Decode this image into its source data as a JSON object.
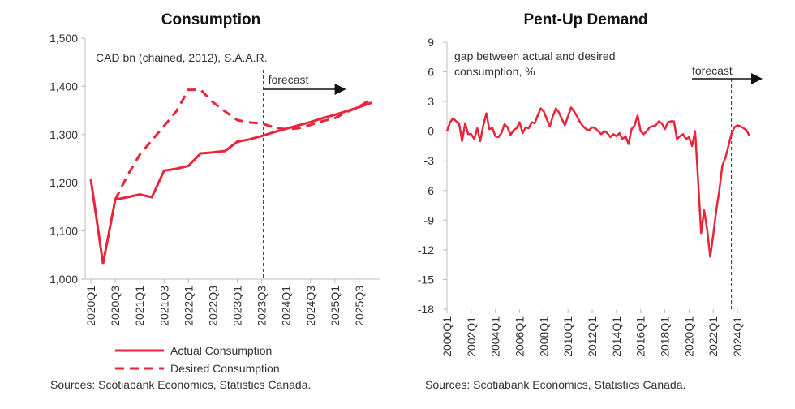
{
  "chart_data": [
    {
      "type": "line",
      "title": "Consumption",
      "unit_note": "CAD bn (chained, 2012), S.A.A.R.",
      "y_ticks": [
        "1,500",
        "1,400",
        "1,300",
        "1,200",
        "1,100",
        "1,000"
      ],
      "ylim": [
        1000,
        1500
      ],
      "x_ticks": [
        "2020Q1",
        "2020Q3",
        "2021Q1",
        "2021Q3",
        "2022Q1",
        "2022Q3",
        "2023Q1",
        "2023Q3",
        "2024Q1",
        "2024Q3",
        "2025Q1",
        "2025Q3"
      ],
      "forecast_label": "forecast",
      "forecast_start": "2023Q3",
      "legend_position": "bottom",
      "sources": "Sources: Scotiabank Economics, Statistics Canada.",
      "color": "#e8253b",
      "series": [
        {
          "name": "Actual Consumption",
          "style": "solid",
          "points": [
            [
              "2020Q1",
              1207
            ],
            [
              "2020Q2",
              1032
            ],
            [
              "2020Q3",
              1165
            ],
            [
              "2020Q4",
              1170
            ],
            [
              "2021Q1",
              1176
            ],
            [
              "2021Q2",
              1170
            ],
            [
              "2021Q3",
              1225
            ],
            [
              "2021Q4",
              1229
            ],
            [
              "2022Q1",
              1235
            ],
            [
              "2022Q2",
              1261
            ],
            [
              "2022Q3",
              1263
            ],
            [
              "2022Q4",
              1266
            ],
            [
              "2023Q1",
              1285
            ],
            [
              "2023Q2",
              1290
            ],
            [
              "2023Q3",
              1297
            ],
            [
              "2023Q4",
              1305
            ],
            [
              "2024Q1",
              1312
            ],
            [
              "2024Q2",
              1319
            ],
            [
              "2024Q3",
              1326
            ],
            [
              "2024Q4",
              1334
            ],
            [
              "2025Q1",
              1341
            ],
            [
              "2025Q2",
              1349
            ],
            [
              "2025Q3",
              1357
            ],
            [
              "2025Q4",
              1366
            ]
          ]
        },
        {
          "name": "Desired Consumption",
          "style": "dashed",
          "points": [
            [
              "2020Q3",
              1165
            ],
            [
              "2020Q4",
              1215
            ],
            [
              "2021Q1",
              1258
            ],
            [
              "2021Q2",
              1288
            ],
            [
              "2021Q3",
              1318
            ],
            [
              "2021Q4",
              1348
            ],
            [
              "2022Q1",
              1393
            ],
            [
              "2022Q2",
              1393
            ],
            [
              "2022Q3",
              1367
            ],
            [
              "2022Q4",
              1348
            ],
            [
              "2023Q1",
              1330
            ],
            [
              "2023Q2",
              1325
            ],
            [
              "2023Q3",
              1323
            ],
            [
              "2023Q4",
              1315
            ],
            [
              "2024Q1",
              1311
            ],
            [
              "2024Q2",
              1313
            ],
            [
              "2024Q3",
              1320
            ],
            [
              "2024Q4",
              1328
            ],
            [
              "2025Q1",
              1334
            ],
            [
              "2025Q2",
              1347
            ],
            [
              "2025Q3",
              1358
            ],
            [
              "2025Q4",
              1374
            ]
          ]
        }
      ]
    },
    {
      "type": "line",
      "title": "Pent-Up Demand",
      "unit_note_lines": [
        "gap between actual and desired",
        "consumption, %"
      ],
      "y_ticks": [
        "9",
        "6",
        "3",
        "0",
        "-3",
        "-6",
        "-9",
        "-12",
        "-15",
        "-18"
      ],
      "ylim": [
        -18,
        9
      ],
      "x_ticks": [
        "2000Q1",
        "2002Q1",
        "2004Q1",
        "2006Q1",
        "2008Q1",
        "2010Q1",
        "2012Q1",
        "2014Q1",
        "2016Q1",
        "2018Q1",
        "2020Q1",
        "2022Q1",
        "2024Q1"
      ],
      "forecast_label": "forecast",
      "forecast_start": "2023Q3",
      "sources": "Sources: Scotiabank Economics, Statistics Canada.",
      "color": "#e8253b",
      "series": [
        {
          "name": "",
          "points": [
            [
              2000.0,
              0.0
            ],
            [
              2000.25,
              0.9
            ],
            [
              2000.5,
              1.3
            ],
            [
              2000.75,
              1.0
            ],
            [
              2001.0,
              0.8
            ],
            [
              2001.25,
              -1.0
            ],
            [
              2001.5,
              0.8
            ],
            [
              2001.75,
              -0.3
            ],
            [
              2002.0,
              -0.3
            ],
            [
              2002.25,
              -0.8
            ],
            [
              2002.5,
              0.3
            ],
            [
              2002.75,
              -1.0
            ],
            [
              2003.0,
              0.6
            ],
            [
              2003.25,
              1.8
            ],
            [
              2003.5,
              0.2
            ],
            [
              2003.75,
              0.3
            ],
            [
              2004.0,
              -0.5
            ],
            [
              2004.25,
              -0.6
            ],
            [
              2004.5,
              -0.2
            ],
            [
              2004.75,
              0.7
            ],
            [
              2005.0,
              0.4
            ],
            [
              2005.25,
              -0.4
            ],
            [
              2005.5,
              0.1
            ],
            [
              2005.75,
              0.3
            ],
            [
              2006.0,
              0.9
            ],
            [
              2006.25,
              -0.2
            ],
            [
              2006.5,
              0.4
            ],
            [
              2006.75,
              0.3
            ],
            [
              2007.0,
              0.9
            ],
            [
              2007.25,
              0.8
            ],
            [
              2007.5,
              1.6
            ],
            [
              2007.75,
              2.3
            ],
            [
              2008.0,
              2.0
            ],
            [
              2008.25,
              1.2
            ],
            [
              2008.5,
              0.5
            ],
            [
              2008.75,
              1.5
            ],
            [
              2009.0,
              2.3
            ],
            [
              2009.25,
              1.9
            ],
            [
              2009.5,
              1.2
            ],
            [
              2009.75,
              0.6
            ],
            [
              2010.0,
              1.5
            ],
            [
              2010.25,
              2.4
            ],
            [
              2010.5,
              2.0
            ],
            [
              2010.75,
              1.5
            ],
            [
              2011.0,
              0.9
            ],
            [
              2011.25,
              0.5
            ],
            [
              2011.5,
              0.2
            ],
            [
              2011.75,
              0.1
            ],
            [
              2012.0,
              0.4
            ],
            [
              2012.25,
              0.3
            ],
            [
              2012.5,
              0.0
            ],
            [
              2012.75,
              -0.3
            ],
            [
              2013.0,
              0.0
            ],
            [
              2013.25,
              -0.2
            ],
            [
              2013.5,
              -0.6
            ],
            [
              2013.75,
              -0.3
            ],
            [
              2014.0,
              -0.5
            ],
            [
              2014.25,
              -0.2
            ],
            [
              2014.5,
              -0.8
            ],
            [
              2014.75,
              -0.5
            ],
            [
              2015.0,
              -1.3
            ],
            [
              2015.25,
              0.2
            ],
            [
              2015.5,
              0.6
            ],
            [
              2015.75,
              1.6
            ],
            [
              2016.0,
              0.0
            ],
            [
              2016.25,
              -0.3
            ],
            [
              2016.5,
              0.0
            ],
            [
              2016.75,
              0.4
            ],
            [
              2017.0,
              0.5
            ],
            [
              2017.25,
              0.6
            ],
            [
              2017.5,
              1.0
            ],
            [
              2017.75,
              0.8
            ],
            [
              2018.0,
              0.2
            ],
            [
              2018.25,
              0.9
            ],
            [
              2018.5,
              1.0
            ],
            [
              2018.75,
              1.0
            ],
            [
              2019.0,
              -0.8
            ],
            [
              2019.25,
              -0.5
            ],
            [
              2019.5,
              -0.3
            ],
            [
              2019.75,
              -0.8
            ],
            [
              2020.0,
              -0.6
            ],
            [
              2020.25,
              -1.5
            ],
            [
              2020.5,
              0.0
            ],
            [
              2020.75,
              -5.0
            ],
            [
              2021.0,
              -10.3
            ],
            [
              2021.25,
              -8.0
            ],
            [
              2021.5,
              -10.0
            ],
            [
              2021.75,
              -12.7
            ],
            [
              2022.0,
              -10.5
            ],
            [
              2022.25,
              -8.0
            ],
            [
              2022.5,
              -6.0
            ],
            [
              2022.75,
              -3.5
            ],
            [
              2023.0,
              -2.7
            ],
            [
              2023.25,
              -1.5
            ],
            [
              2023.5,
              -0.3
            ],
            [
              2023.75,
              0.4
            ],
            [
              2024.0,
              0.6
            ],
            [
              2024.25,
              0.5
            ],
            [
              2024.5,
              0.3
            ],
            [
              2024.75,
              0.1
            ],
            [
              2025.0,
              -0.5
            ]
          ]
        }
      ]
    }
  ]
}
